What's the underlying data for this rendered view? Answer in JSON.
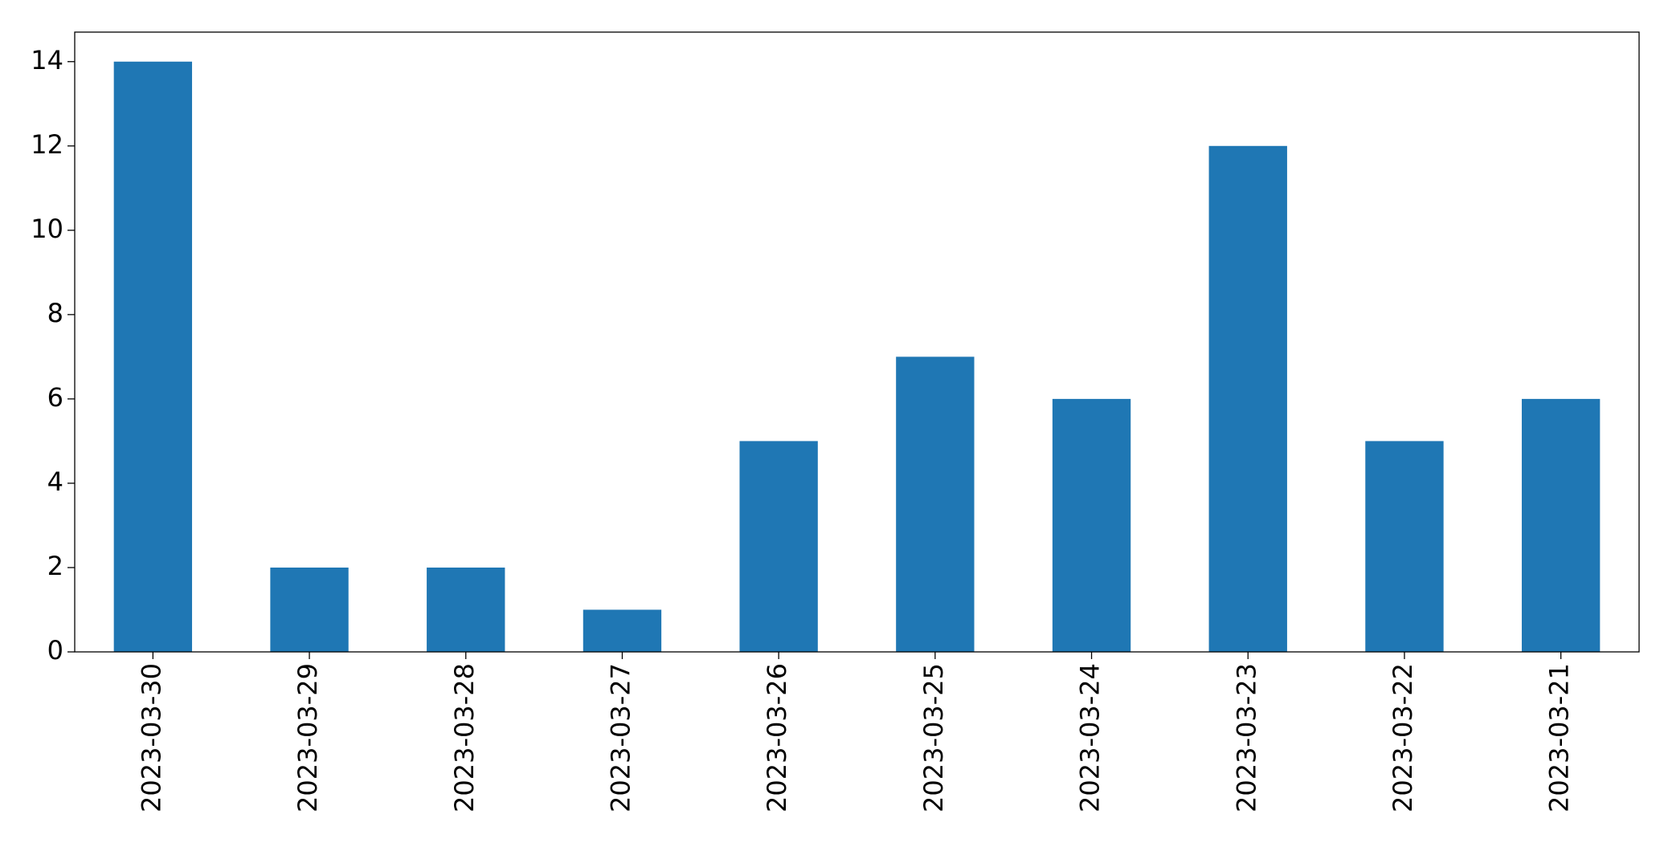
{
  "chart_data": {
    "type": "bar",
    "categories": [
      "2023-03-30",
      "2023-03-29",
      "2023-03-28",
      "2023-03-27",
      "2023-03-26",
      "2023-03-25",
      "2023-03-24",
      "2023-03-23",
      "2023-03-22",
      "2023-03-21"
    ],
    "values": [
      14,
      2,
      2,
      1,
      5,
      7,
      6,
      12,
      5,
      6
    ],
    "color": "#1f77b4",
    "ylim": [
      0,
      14.7
    ],
    "yticks": [
      0,
      2,
      4,
      6,
      8,
      10,
      12,
      14
    ],
    "grid": false
  }
}
